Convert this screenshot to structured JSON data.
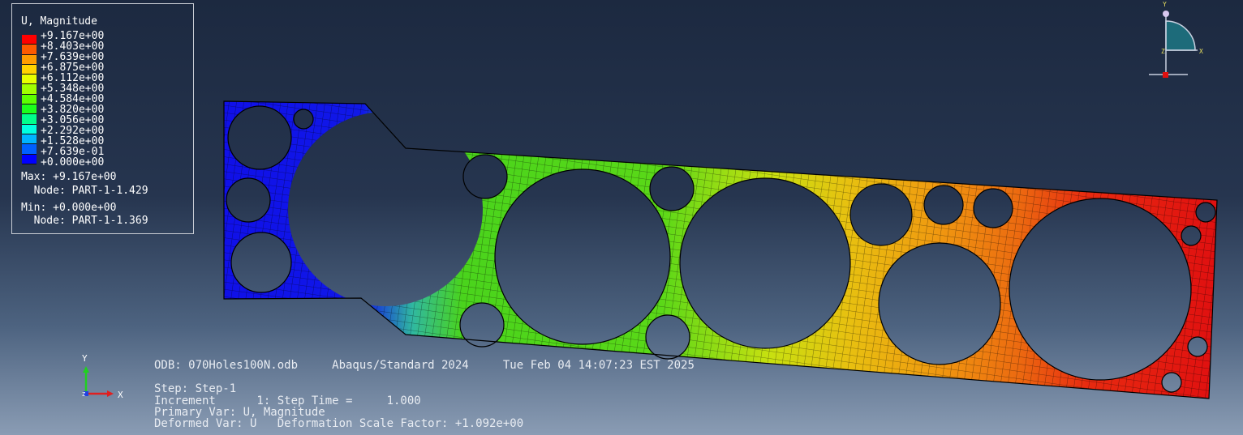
{
  "legend": {
    "title": "U, Magnitude",
    "entries": [
      {
        "value": "+9.167e+00",
        "color": "#ff0000"
      },
      {
        "value": "+8.403e+00",
        "color": "#ff5a00"
      },
      {
        "value": "+7.639e+00",
        "color": "#ff9c00"
      },
      {
        "value": "+6.875e+00",
        "color": "#ffd200"
      },
      {
        "value": "+6.112e+00",
        "color": "#e6ff00"
      },
      {
        "value": "+5.348e+00",
        "color": "#a0ff00"
      },
      {
        "value": "+4.584e+00",
        "color": "#5cff00"
      },
      {
        "value": "+3.820e+00",
        "color": "#1cff1c"
      },
      {
        "value": "+3.056e+00",
        "color": "#00ff8c"
      },
      {
        "value": "+2.292e+00",
        "color": "#00ffe0"
      },
      {
        "value": "+1.528e+00",
        "color": "#00b4ff"
      },
      {
        "value": "+7.639e-01",
        "color": "#0060ff"
      },
      {
        "value": "+0.000e+00",
        "color": "#0000ff"
      }
    ],
    "max_line": "Max: +9.167e+00",
    "max_node": "  Node: PART-1-1.429",
    "min_line": "Min: +0.000e+00",
    "min_node": "  Node: PART-1-1.369"
  },
  "triad_top": {
    "y": "Y",
    "x": "X",
    "z": "Z"
  },
  "triad_bottom": {
    "y": "Y",
    "x": "X",
    "z": "Z"
  },
  "info": {
    "odb_line": "ODB: 070Holes100N.odb     Abaqus/Standard 2024     Tue Feb 04 14:07:23 EST 2025",
    "step_line": "Step: Step-1",
    "increment_line": "Increment      1: Step Time =     1.000",
    "primary_line": "Primary Var: U, Magnitude",
    "deformed_line": "Deformed Var: U   Deformation Scale Factor: +1.092e+00"
  },
  "colors": {
    "blue": "#1018e0",
    "green": "#4fd81a",
    "yellow": "#d0e010",
    "orange": "#f0a010",
    "red": "#e81010",
    "mesh": "#000000"
  }
}
